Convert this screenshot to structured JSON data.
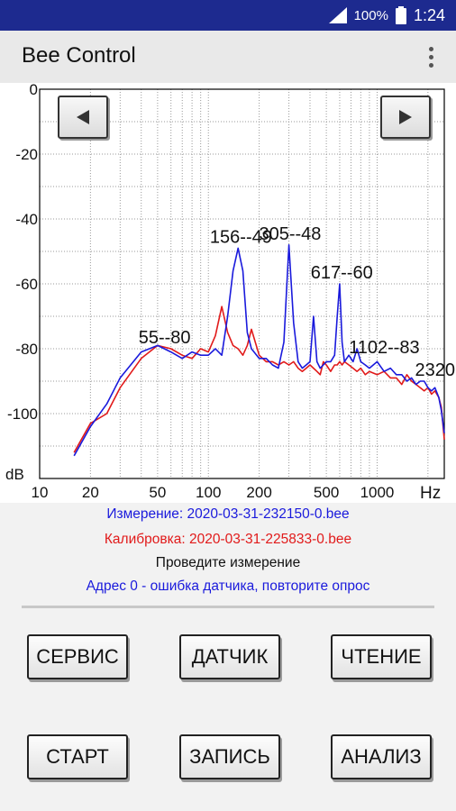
{
  "status_bar": {
    "battery_percent": "100%",
    "time": "1:24",
    "icons": [
      "signal-icon",
      "battery-icon"
    ]
  },
  "app_bar": {
    "title": "Bee Control",
    "menu_icon": "overflow-menu-icon"
  },
  "chart_nav": {
    "prev_icon": "triangle-left-icon",
    "next_icon": "triangle-right-icon"
  },
  "chart_data": {
    "type": "line",
    "xscale": "log",
    "xlim": [
      10,
      2500
    ],
    "ylim": [
      -120,
      0
    ],
    "xlabel": "Hz",
    "ylabel": "dB",
    "x_ticks": [
      10,
      20,
      50,
      100,
      200,
      500,
      1000
    ],
    "x_tick_labels": [
      "10",
      "20",
      "50",
      "100",
      "200",
      "500",
      "1000"
    ],
    "y_ticks": [
      0,
      -20,
      -40,
      -60,
      -80,
      -100
    ],
    "y_tick_labels": [
      "0",
      "-20",
      "-40",
      "-60",
      "-80",
      "-100"
    ],
    "grid": true,
    "series": [
      {
        "color": "#1a1adc",
        "x": [
          16,
          20,
          25,
          30,
          40,
          50,
          60,
          70,
          80,
          90,
          100,
          110,
          120,
          130,
          140,
          150,
          160,
          170,
          180,
          200,
          220,
          240,
          260,
          280,
          300,
          320,
          340,
          360,
          380,
          400,
          420,
          440,
          460,
          480,
          500,
          530,
          560,
          580,
          600,
          620,
          640,
          680,
          720,
          760,
          800,
          850,
          900,
          1000,
          1100,
          1200,
          1300,
          1400,
          1500,
          1600,
          1700,
          1800,
          1900,
          2000,
          2100,
          2200,
          2320,
          2400,
          2500
        ],
        "y": [
          -113,
          -104,
          -97,
          -89,
          -81,
          -79,
          -81,
          -83,
          -81,
          -82,
          -82,
          -80,
          -82,
          -70,
          -56,
          -49,
          -56,
          -75,
          -80,
          -83,
          -83,
          -85,
          -86,
          -78,
          -48,
          -72,
          -84,
          -86,
          -85,
          -84,
          -70,
          -84,
          -86,
          -85,
          -84,
          -84,
          -82,
          -70,
          -60,
          -78,
          -84,
          -82,
          -84,
          -80,
          -84,
          -85,
          -86,
          -84,
          -87,
          -86,
          -88,
          -88,
          -90,
          -89,
          -91,
          -90,
          -90,
          -92,
          -93,
          -92,
          -95,
          -99,
          -106
        ]
      },
      {
        "color": "#e11a1a",
        "x": [
          16,
          20,
          25,
          30,
          40,
          50,
          60,
          70,
          80,
          90,
          100,
          110,
          120,
          130,
          140,
          150,
          160,
          170,
          180,
          200,
          220,
          240,
          260,
          280,
          300,
          320,
          340,
          360,
          380,
          400,
          420,
          440,
          460,
          480,
          500,
          530,
          560,
          580,
          600,
          620,
          640,
          680,
          720,
          760,
          800,
          850,
          900,
          1000,
          1100,
          1200,
          1300,
          1400,
          1500,
          1600,
          1700,
          1800,
          1900,
          2000,
          2100,
          2200,
          2320,
          2400,
          2500
        ],
        "y": [
          -112,
          -103,
          -100,
          -92,
          -83,
          -79,
          -80,
          -82,
          -83,
          -80,
          -81,
          -76,
          -67,
          -75,
          -79,
          -80,
          -82,
          -79,
          -74,
          -82,
          -84,
          -84,
          -85,
          -84,
          -85,
          -84,
          -86,
          -87,
          -86,
          -85,
          -86,
          -87,
          -88,
          -84,
          -85,
          -87,
          -85,
          -85,
          -84,
          -85,
          -84,
          -85,
          -86,
          -87,
          -86,
          -88,
          -87,
          -88,
          -87,
          -89,
          -89,
          -91,
          -88,
          -90,
          -91,
          -92,
          -93,
          -92,
          -94,
          -93,
          -95,
          -98,
          -108
        ]
      }
    ],
    "annotations": [
      {
        "text": "55--80",
        "x": 55,
        "y": -80
      },
      {
        "text": "156--49",
        "x": 156,
        "y": -49
      },
      {
        "text": "305--48",
        "x": 305,
        "y": -48
      },
      {
        "text": "617--60",
        "x": 617,
        "y": -60
      },
      {
        "text": "1102--83",
        "x": 1102,
        "y": -83
      },
      {
        "text": "2320",
        "x": 2320,
        "y": -90
      }
    ]
  },
  "info": {
    "measurement": "Измерение: 2020-03-31-232150-0.bee",
    "calibration": "Калибровка: 2020-03-31-225833-0.bee",
    "prompt": "Проведите измерение",
    "error": "Адрес 0 - ошибка датчика, повторите опрос",
    "colors": {
      "measurement": "#1a1adc",
      "calibration": "#e11a1a",
      "prompt": "#111111",
      "error": "#1a1adc"
    }
  },
  "buttons": {
    "service": "СЕРВИС",
    "sensor": "ДАТЧИК",
    "read": "ЧТЕНИЕ",
    "start": "СТАРТ",
    "record": "ЗАПИСЬ",
    "analysis": "АНАЛИЗ"
  }
}
